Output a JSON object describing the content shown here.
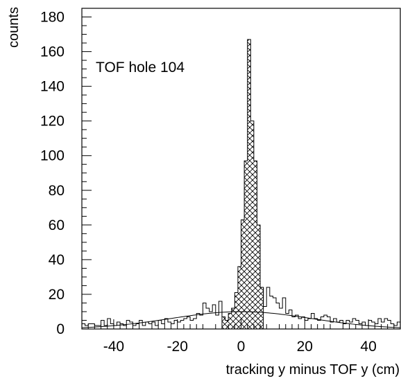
{
  "chart_data": {
    "type": "bar",
    "xlabel": "tracking y minus TOF y (cm)",
    "ylabel": "counts",
    "annotation": "TOF hole 104",
    "xlim": [
      -50,
      50
    ],
    "ylim": [
      0,
      185
    ],
    "xticks": [
      -40,
      -20,
      0,
      20,
      40
    ],
    "yticks": [
      0,
      20,
      40,
      60,
      80,
      100,
      120,
      140,
      160,
      180
    ],
    "bin_width": 1,
    "bin_start": -50,
    "counts": [
      3,
      2,
      3,
      3,
      2,
      2,
      5,
      2,
      6,
      3,
      2,
      4,
      3,
      2,
      5,
      4,
      2,
      3,
      5,
      2,
      4,
      3,
      4,
      2,
      5,
      3,
      6,
      4,
      3,
      5,
      4,
      5,
      6,
      7,
      5,
      6,
      9,
      8,
      15,
      12,
      10,
      14,
      8,
      16,
      7,
      5,
      9,
      12,
      21,
      36,
      63,
      97,
      167,
      120,
      97,
      60,
      24,
      13,
      24,
      19,
      18,
      15,
      12,
      18,
      9,
      11,
      7,
      8,
      6,
      7,
      5,
      6,
      9,
      6,
      5,
      7,
      8,
      7,
      4,
      6,
      4,
      5,
      3,
      5,
      4,
      6,
      5,
      3,
      4,
      2,
      5,
      4,
      3,
      6,
      4,
      6,
      5,
      3,
      2,
      4
    ],
    "hatched_region": [
      -6,
      7
    ],
    "fit_curve": {
      "type": "gaussian",
      "amplitude": 10,
      "mean": 0,
      "sigma": 22
    },
    "grid": false,
    "legend": "none"
  }
}
